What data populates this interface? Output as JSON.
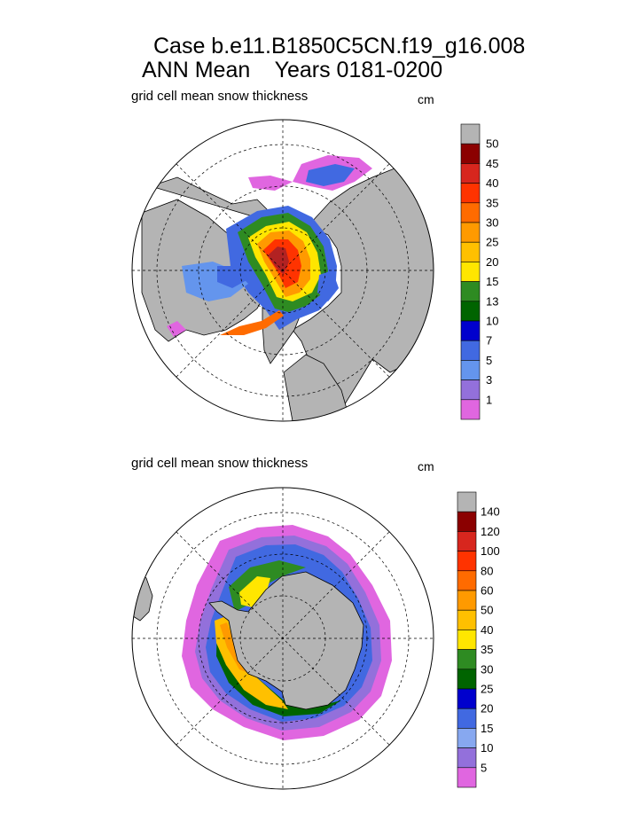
{
  "header": {
    "title_line1": "Case b.e11.B1850C5CN.f19_g16.008",
    "title_line2": "ANN Mean    Years 0181-0200"
  },
  "panels": [
    {
      "id": "arctic",
      "label": "grid cell mean snow thickness",
      "units": "cm",
      "colorbar": {
        "colors": [
          "#b4b4b4",
          "#8b0000",
          "#d7261e",
          "#ff3300",
          "#ff6b00",
          "#ff9a00",
          "#ffc000",
          "#ffe600",
          "#2e8b22",
          "#006400",
          "#0000cd",
          "#4169e1",
          "#6495ed",
          "#9370db",
          "#e066e0"
        ],
        "labels": [
          "50",
          "45",
          "40",
          "35",
          "30",
          "25",
          "20",
          "15",
          "13",
          "10",
          "7",
          "5",
          "3",
          "1"
        ]
      }
    },
    {
      "id": "antarctic",
      "label": "grid cell mean snow thickness",
      "units": "cm",
      "colorbar": {
        "colors": [
          "#b4b4b4",
          "#8b0000",
          "#d7261e",
          "#ff3300",
          "#ff6b00",
          "#ff9a00",
          "#ffc000",
          "#ffe600",
          "#2e8b22",
          "#006400",
          "#0000cd",
          "#4169e1",
          "#87a8f0",
          "#9370db",
          "#e066e0"
        ],
        "labels": [
          "140",
          "120",
          "100",
          "80",
          "60",
          "50",
          "40",
          "35",
          "30",
          "25",
          "20",
          "15",
          "10",
          "5"
        ]
      }
    }
  ]
}
